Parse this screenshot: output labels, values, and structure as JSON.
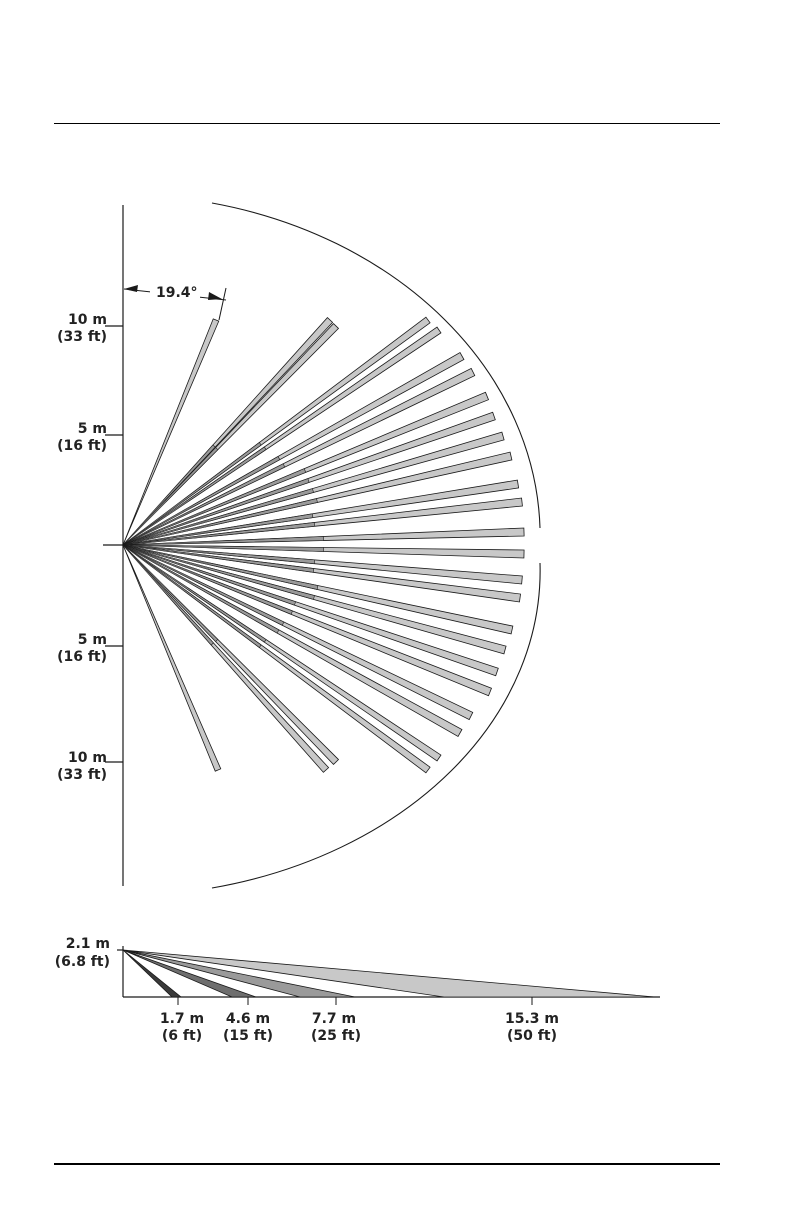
{
  "top_view": {
    "angle_label": "19.4°",
    "y_labels": [
      {
        "m": "10 m",
        "ft": "(33 ft)"
      },
      {
        "m": "5 m",
        "ft": "(16 ft)"
      },
      {
        "m": "5 m",
        "ft": "(16 ft)"
      },
      {
        "m": "10 m",
        "ft": "(33 ft)"
      }
    ]
  },
  "side_view": {
    "height_label": {
      "m": "2.1 m",
      "ft": "(6.8 ft)"
    },
    "distance_labels": [
      {
        "m": "1.7 m",
        "ft": "(6 ft)"
      },
      {
        "m": "4.6 m",
        "ft": "(15 ft)"
      },
      {
        "m": "7.7 m",
        "ft": "(25 ft)"
      },
      {
        "m": "15.3 m",
        "ft": "(50 ft)"
      }
    ]
  },
  "colors": {
    "zone_fill": "#c8c8c8",
    "zone_mid": "#9a9a9a",
    "zone_dark": "#6e6e6e",
    "line": "#1a1a1a"
  }
}
